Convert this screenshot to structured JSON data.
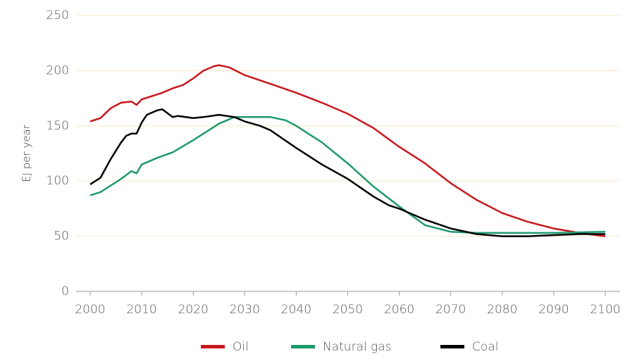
{
  "chart_data": {
    "type": "line",
    "y_label": "EJ per year",
    "xlim": [
      2000,
      2100
    ],
    "xticks": [
      2000,
      2010,
      2020,
      2030,
      2040,
      2050,
      2060,
      2070,
      2080,
      2090,
      2100
    ],
    "ylim": [
      0,
      250
    ],
    "yticks": [
      0,
      50,
      100,
      150,
      200,
      250
    ],
    "grid": true,
    "legend": "bottom",
    "series": [
      {
        "name": "Oil",
        "color": "#c8181e",
        "x": [
          2000,
          2002,
          2004,
          2006,
          2008,
          2009,
          2010,
          2012,
          2014,
          2016,
          2018,
          2020,
          2022,
          2024,
          2025,
          2027,
          2030,
          2035,
          2040,
          2045,
          2050,
          2055,
          2060,
          2065,
          2070,
          2075,
          2080,
          2085,
          2090,
          2095,
          2100
        ],
        "values": [
          154,
          157,
          166,
          171,
          172,
          169,
          174,
          177,
          180,
          184,
          187,
          193,
          200,
          204,
          205,
          203,
          196,
          188,
          180,
          171,
          161,
          148,
          131,
          116,
          98,
          83,
          71,
          63,
          57,
          53,
          50
        ]
      },
      {
        "name": "Natural gas",
        "color": "#1e9a6a",
        "x": [
          2000,
          2002,
          2004,
          2006,
          2008,
          2009,
          2010,
          2013,
          2016,
          2020,
          2025,
          2028,
          2030,
          2035,
          2038,
          2040,
          2045,
          2050,
          2055,
          2060,
          2065,
          2070,
          2075,
          2080,
          2090,
          2100
        ],
        "values": [
          87,
          90,
          96,
          102,
          109,
          107,
          115,
          121,
          126,
          137,
          152,
          158,
          158,
          158,
          155,
          150,
          135,
          116,
          95,
          77,
          60,
          54,
          53,
          53,
          53,
          54
        ]
      },
      {
        "name": "Coal",
        "color": "#000000",
        "x": [
          2000,
          2002,
          2004,
          2006,
          2007,
          2008,
          2009,
          2010,
          2011,
          2013,
          2014,
          2016,
          2017,
          2020,
          2022,
          2025,
          2028,
          2030,
          2033,
          2035,
          2040,
          2045,
          2050,
          2055,
          2058,
          2060,
          2065,
          2070,
          2075,
          2080,
          2085,
          2090,
          2095,
          2100
        ],
        "values": [
          97,
          103,
          120,
          135,
          141,
          143,
          143,
          153,
          160,
          164,
          165,
          158,
          159,
          157,
          158,
          160,
          158,
          154,
          150,
          146,
          130,
          115,
          102,
          86,
          78,
          75,
          65,
          57,
          52,
          50,
          50,
          51,
          52,
          52
        ]
      }
    ]
  }
}
